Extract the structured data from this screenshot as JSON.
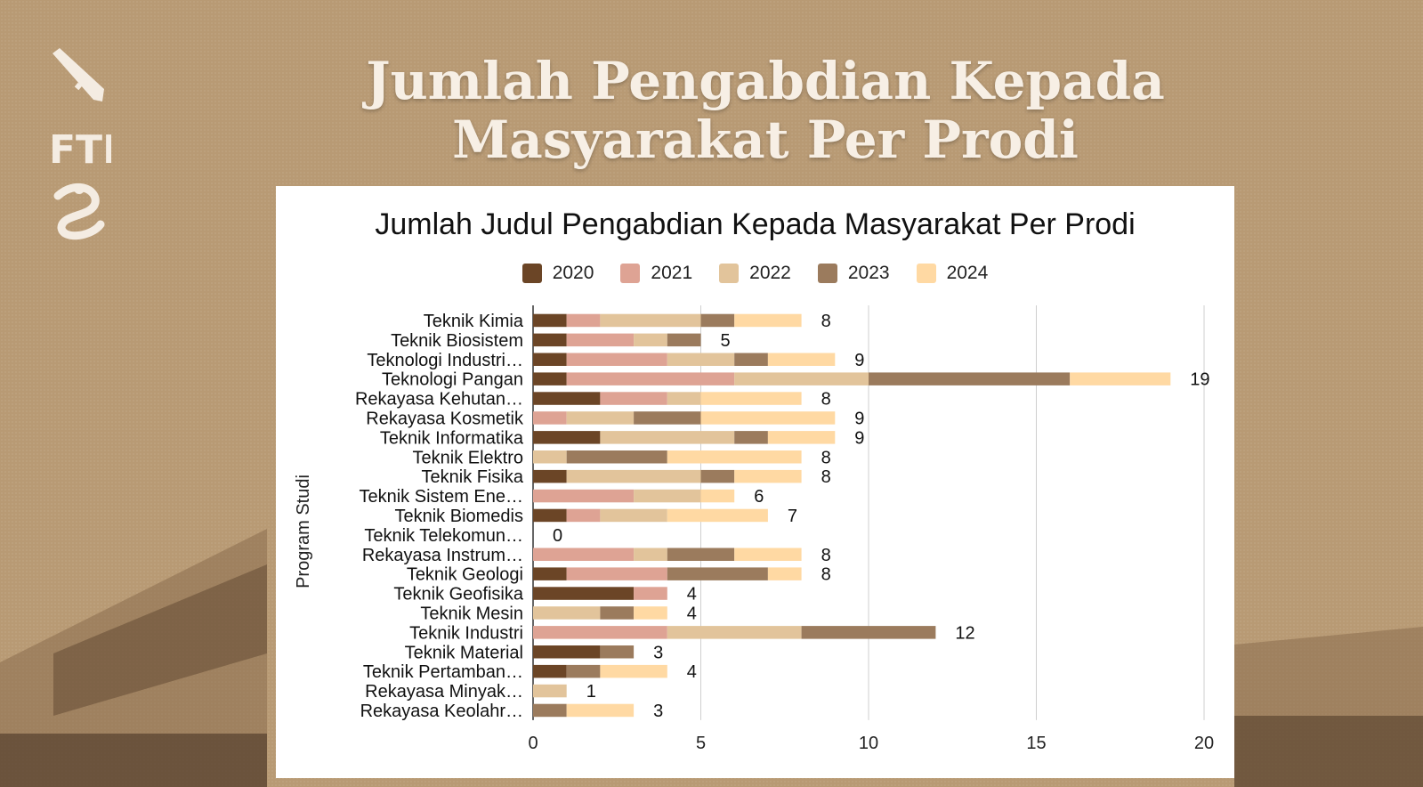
{
  "slide": {
    "title_line1": "Jumlah Pengabdian Kepada",
    "title_line2": "Masyarakat Per Prodi",
    "logo_text": "FTI"
  },
  "colors": {
    "background": "#b89a74",
    "series": [
      "#6b4526",
      "#dea394",
      "#e2c49b",
      "#9b7b5d",
      "#ffd9a3"
    ]
  },
  "chart_data": {
    "type": "bar",
    "orientation": "horizontal",
    "stacked": true,
    "title": "Jumlah Judul Pengabdian Kepada Masyarakat Per Prodi",
    "ylabel": "Program Studi",
    "xlabel": "",
    "xlim": [
      0,
      20
    ],
    "xticks": [
      0,
      5,
      10,
      15,
      20
    ],
    "grid": true,
    "legend_position": "top",
    "categories": [
      "Teknik Kimia",
      "Teknik Biosistem",
      "Teknologi Industri…",
      "Teknologi Pangan",
      "Rekayasa Kehutan…",
      "Rekayasa Kosmetik",
      "Teknik Informatika",
      "Teknik Elektro",
      "Teknik Fisika",
      "Teknik Sistem Ene…",
      "Teknik Biomedis",
      "Teknik Telekomun…",
      "Rekayasa Instrum…",
      "Teknik Geologi",
      "Teknik Geofisika",
      "Teknik Mesin",
      "Teknik Industri",
      "Teknik Material",
      "Teknik Pertamban…",
      "Rekayasa Minyak…",
      "Rekayasa Keolahr…"
    ],
    "series": [
      {
        "name": "2020",
        "values": [
          1,
          1,
          1,
          1,
          2,
          0,
          2,
          0,
          1,
          0,
          1,
          0,
          0,
          1,
          3,
          0,
          0,
          2,
          1,
          0,
          0
        ]
      },
      {
        "name": "2021",
        "values": [
          1,
          2,
          3,
          5,
          2,
          1,
          0,
          0,
          0,
          3,
          1,
          0,
          3,
          3,
          1,
          0,
          4,
          0,
          0,
          0,
          0
        ]
      },
      {
        "name": "2022",
        "values": [
          3,
          1,
          2,
          4,
          1,
          2,
          4,
          1,
          4,
          2,
          2,
          0,
          1,
          0,
          0,
          2,
          4,
          0,
          0,
          1,
          0
        ]
      },
      {
        "name": "2023",
        "values": [
          1,
          1,
          1,
          6,
          0,
          2,
          1,
          3,
          1,
          0,
          0,
          0,
          2,
          3,
          0,
          1,
          4,
          1,
          1,
          0,
          1
        ]
      },
      {
        "name": "2024",
        "values": [
          2,
          0,
          2,
          3,
          3,
          4,
          2,
          4,
          2,
          1,
          3,
          0,
          2,
          1,
          0,
          1,
          0,
          0,
          2,
          0,
          2
        ]
      }
    ],
    "totals": [
      8,
      5,
      9,
      19,
      8,
      9,
      9,
      8,
      8,
      6,
      7,
      0,
      8,
      8,
      4,
      4,
      12,
      3,
      4,
      1,
      3
    ]
  }
}
